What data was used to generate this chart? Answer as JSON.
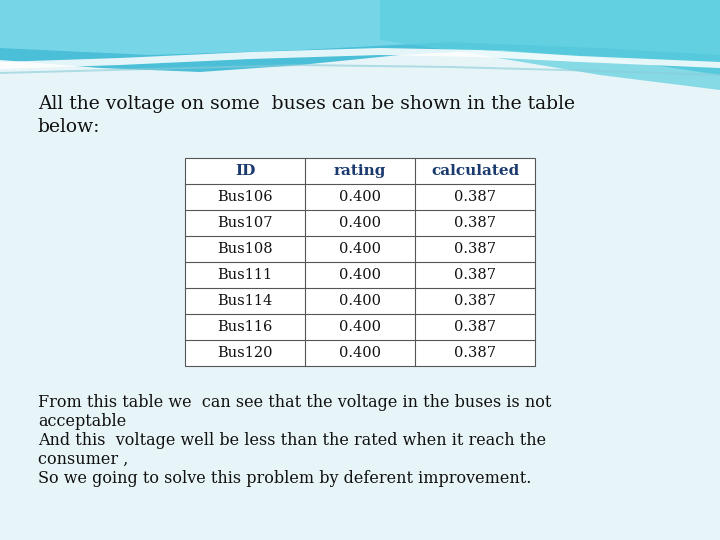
{
  "title_line1": "All the voltage on some  buses can be shown in the table",
  "title_line2": "below:",
  "table_headers": [
    "ID",
    "rating",
    "calculated"
  ],
  "table_rows": [
    [
      "Bus106",
      "0.400",
      "0.387"
    ],
    [
      "Bus107",
      "0.400",
      "0.387"
    ],
    [
      "Bus108",
      "0.400",
      "0.387"
    ],
    [
      "Bus111",
      "0.400",
      "0.387"
    ],
    [
      "Bus114",
      "0.400",
      "0.387"
    ],
    [
      "Bus116",
      "0.400",
      "0.387"
    ],
    [
      "Bus120",
      "0.400",
      "0.387"
    ]
  ],
  "footer_lines": [
    "From this table we  can see that the voltage in the buses is not",
    "acceptable",
    "And this  voltage well be less than the rated when it reach the",
    "consumer ,",
    "So we going to solve this problem by deferent improvement."
  ],
  "bg_color": "#e8f5f8",
  "header_text_color": "#1a3a6e",
  "body_text_color": "#111111",
  "table_border_color": "#555555",
  "title_font_size": 13.5,
  "footer_font_size": 11.5,
  "table_font_size": 10.5
}
